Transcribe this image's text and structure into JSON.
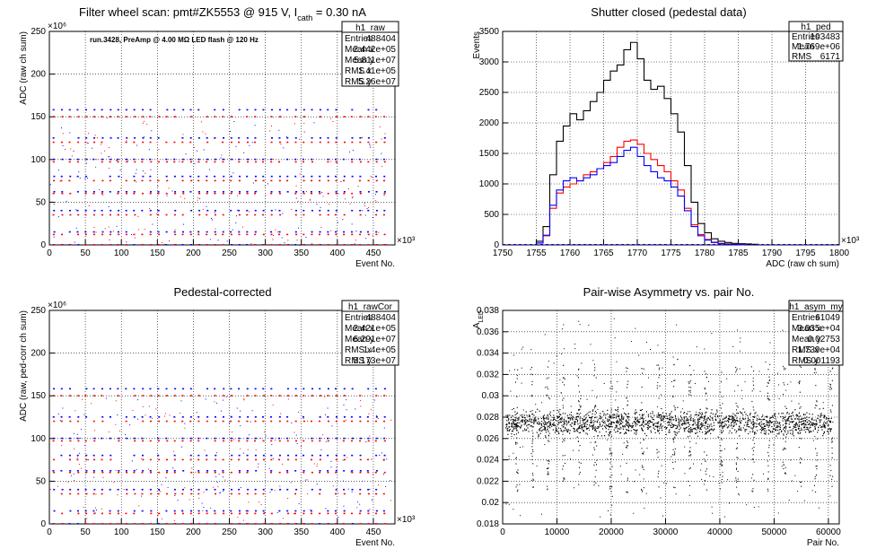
{
  "chart_data": [
    {
      "type": "scatter",
      "title": "Filter wheel scan: pmt#ZK5553 @   915 V, I",
      "title_sub": "cath",
      "title_tail": " = 0.30 nA",
      "annotation": "run.3428, PreAmp @ 4.00 MΩ LED flash @  120 Hz",
      "xlabel": "Event No.",
      "ylabel": "ADC (raw ch sum)",
      "x_exponent": "×10³",
      "y_exponent": "×10⁶",
      "xlim": [
        0,
        480
      ],
      "ylim": [
        0,
        250
      ],
      "xticks": [
        "0",
        "50",
        "100",
        "150",
        "200",
        "250",
        "300",
        "350",
        "400",
        "450"
      ],
      "yticks": [
        "0",
        "50",
        "100",
        "150",
        "200",
        "250"
      ],
      "grid": true,
      "series": [
        {
          "color": "#0000ff",
          "bands": [
            0,
            15,
            40,
            62,
            80,
            100,
            125,
            158
          ]
        },
        {
          "color": "#ff0000",
          "bands": [
            0,
            12,
            35,
            60,
            75,
            97,
            120,
            150
          ]
        }
      ],
      "stats": {
        "name": "h1_raw",
        "rows": [
          [
            "Entries",
            "488404"
          ],
          [
            "Mean x",
            "2.442e+05"
          ],
          [
            "Mean y",
            "5.811e+07"
          ],
          [
            "RMS x",
            "1.41e+05"
          ],
          [
            "RMS y",
            "5.26e+07"
          ]
        ]
      }
    },
    {
      "type": "histogram",
      "title": "Shutter closed (pedestal data)",
      "xlabel": "ADC (raw ch sum)",
      "ylabel": "Events",
      "x_exponent": "×10³",
      "xlim": [
        1750,
        1800
      ],
      "ylim": [
        0,
        3500
      ],
      "xticks": [
        "1750",
        "1755",
        "1760",
        "1765",
        "1770",
        "1775",
        "1780",
        "1785",
        "1790",
        "1795",
        "1800"
      ],
      "yticks": [
        "0",
        "500",
        "1000",
        "1500",
        "2000",
        "2500",
        "3000",
        "3500"
      ],
      "grid": true,
      "series": [
        {
          "color": "#000000",
          "x": [
            1756,
            1757,
            1758,
            1759,
            1760,
            1761,
            1762,
            1763,
            1764,
            1765,
            1766,
            1767,
            1768,
            1769,
            1770,
            1771,
            1772,
            1773,
            1774,
            1775,
            1776,
            1777,
            1778,
            1779,
            1780,
            1781,
            1782,
            1783,
            1784,
            1785,
            1786,
            1787,
            1788
          ],
          "y": [
            60,
            300,
            1150,
            1700,
            1950,
            2150,
            2050,
            2200,
            2350,
            2500,
            2700,
            2850,
            2950,
            3200,
            3320,
            3050,
            2700,
            2550,
            2600,
            2400,
            2150,
            1850,
            1300,
            700,
            350,
            200,
            100,
            60,
            40,
            25,
            20,
            15,
            10
          ]
        },
        {
          "color": "#ff0000",
          "x": [
            1756,
            1757,
            1758,
            1759,
            1760,
            1761,
            1762,
            1763,
            1764,
            1765,
            1766,
            1767,
            1768,
            1769,
            1770,
            1771,
            1772,
            1773,
            1774,
            1775,
            1776,
            1777,
            1778,
            1779,
            1780,
            1781,
            1782,
            1783,
            1784,
            1785,
            1786
          ],
          "y": [
            30,
            150,
            600,
            850,
            950,
            1000,
            1050,
            1150,
            1200,
            1250,
            1350,
            1450,
            1600,
            1700,
            1720,
            1650,
            1500,
            1400,
            1300,
            1200,
            1050,
            900,
            600,
            330,
            170,
            90,
            45,
            25,
            15,
            10,
            5
          ]
        },
        {
          "color": "#0000ff",
          "x": [
            1756,
            1757,
            1758,
            1759,
            1760,
            1761,
            1762,
            1763,
            1764,
            1765,
            1766,
            1767,
            1768,
            1769,
            1770,
            1771,
            1772,
            1773,
            1774,
            1775,
            1776,
            1777,
            1778,
            1779,
            1780,
            1781,
            1782,
            1783,
            1784,
            1785,
            1786
          ],
          "y": [
            30,
            160,
            650,
            900,
            1050,
            1100,
            1050,
            1100,
            1150,
            1250,
            1300,
            1350,
            1450,
            1550,
            1600,
            1450,
            1300,
            1200,
            1100,
            1050,
            950,
            800,
            560,
            300,
            150,
            80,
            40,
            20,
            12,
            8,
            4
          ]
        }
      ],
      "stats": {
        "name": "h1_ped",
        "rows": [
          [
            "Entries",
            "103483"
          ],
          [
            "Mean",
            "1.769e+06"
          ],
          [
            "RMS",
            "6171"
          ]
        ]
      }
    },
    {
      "type": "scatter",
      "title": "Pedestal-corrected",
      "xlabel": "Event No.",
      "ylabel": "ADC (raw, ped-corr ch sum)",
      "x_exponent": "×10³",
      "y_exponent": "×10⁶",
      "xlim": [
        0,
        480
      ],
      "ylim": [
        0,
        250
      ],
      "xticks": [
        "0",
        "50",
        "100",
        "150",
        "200",
        "250",
        "300",
        "350",
        "400",
        "450"
      ],
      "yticks": [
        "0",
        "50",
        "100",
        "150",
        "200",
        "250"
      ],
      "grid": true,
      "series": [
        {
          "color": "#0000ff",
          "bands": [
            0,
            15,
            40,
            62,
            80,
            100,
            125,
            158
          ]
        },
        {
          "color": "#ff0000",
          "bands": [
            0,
            12,
            35,
            60,
            75,
            97,
            120,
            150
          ]
        }
      ],
      "stats": {
        "name": "h1_rawCor",
        "rows": [
          [
            "Entries",
            "488404"
          ],
          [
            "Mean x",
            "2.421e+05"
          ],
          [
            "Mean y",
            "6.291e+07"
          ],
          [
            "RMS x",
            "1.4e+05"
          ],
          [
            "RMS y",
            "5.173e+07"
          ]
        ]
      }
    },
    {
      "type": "scatter",
      "title": "Pair-wise Asymmetry vs. pair No.",
      "xlabel": "Pair No.",
      "ylabel": "A",
      "ylabel_sub": "LED",
      "xlim": [
        0,
        62000
      ],
      "ylim": [
        0.018,
        0.038
      ],
      "xticks": [
        "0",
        "10000",
        "20000",
        "30000",
        "40000",
        "50000",
        "60000"
      ],
      "yticks": [
        "0.018",
        "0.02",
        "0.022",
        "0.024",
        "0.026",
        "0.028",
        "0.03",
        "0.032",
        "0.034",
        "0.036",
        "0.038"
      ],
      "grid": true,
      "series": [
        {
          "color": "#000000",
          "center": 0.0275,
          "spread": 0.0008
        }
      ],
      "stats": {
        "name": "h1_asym_my",
        "rows": [
          [
            "Entries",
            "61049"
          ],
          [
            "Mean x",
            "3.035e+04"
          ],
          [
            "Mean y",
            "0.02753"
          ],
          [
            "RMS x",
            "1.739e+04"
          ],
          [
            "RMS y",
            "0.001193"
          ]
        ]
      }
    }
  ]
}
